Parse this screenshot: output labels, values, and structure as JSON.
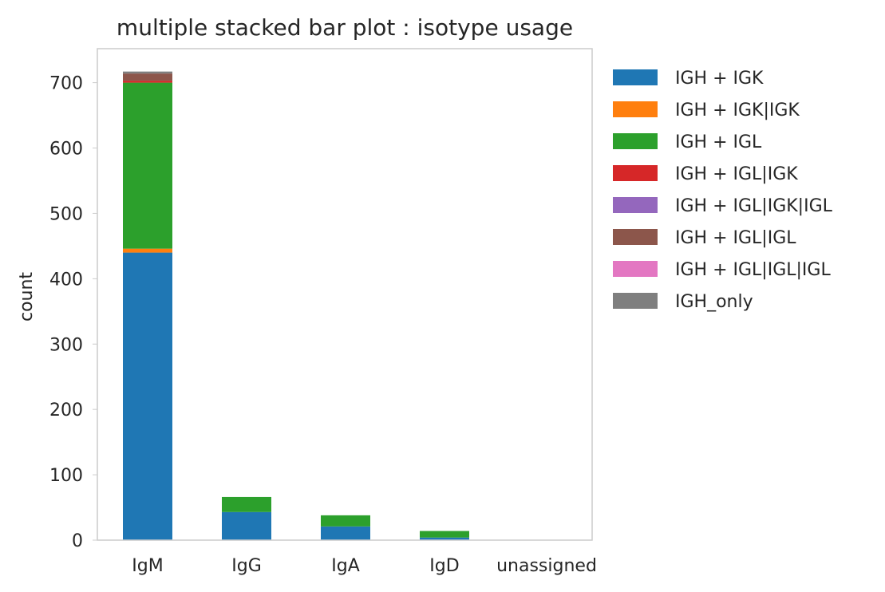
{
  "chart_data": {
    "type": "bar",
    "stacked": true,
    "title": "multiple stacked bar plot : isotype usage",
    "xlabel": "",
    "ylabel": "count",
    "ylim": [
      0,
      752
    ],
    "yticks": [
      0,
      100,
      200,
      300,
      400,
      500,
      600,
      700
    ],
    "grid": false,
    "legend_position": "outside-right",
    "categories": [
      "IgM",
      "IgG",
      "IgA",
      "IgD",
      "unassigned"
    ],
    "series": [
      {
        "name": "IGH + IGK",
        "color": "#1f77b4",
        "values": [
          440,
          43,
          21,
          4,
          0
        ]
      },
      {
        "name": "IGH + IGK|IGK",
        "color": "#ff7f0e",
        "values": [
          6,
          0,
          0,
          0,
          0
        ]
      },
      {
        "name": "IGH + IGL",
        "color": "#2ca02c",
        "values": [
          254,
          23,
          17,
          10,
          0
        ]
      },
      {
        "name": "IGH + IGL|IGK",
        "color": "#d62728",
        "values": [
          3,
          0,
          0,
          0,
          0
        ]
      },
      {
        "name": "IGH + IGL|IGK|IGL",
        "color": "#9467bd",
        "values": [
          0,
          0,
          0,
          0,
          0
        ]
      },
      {
        "name": "IGH + IGL|IGL",
        "color": "#8c564b",
        "values": [
          11,
          0,
          0,
          0,
          0
        ]
      },
      {
        "name": "IGH + IGL|IGL|IGL",
        "color": "#e377c2",
        "values": [
          0,
          0,
          0,
          0,
          0
        ]
      },
      {
        "name": "IGH_only",
        "color": "#7f7f7f",
        "values": [
          3,
          0,
          0,
          0,
          0
        ]
      }
    ]
  }
}
